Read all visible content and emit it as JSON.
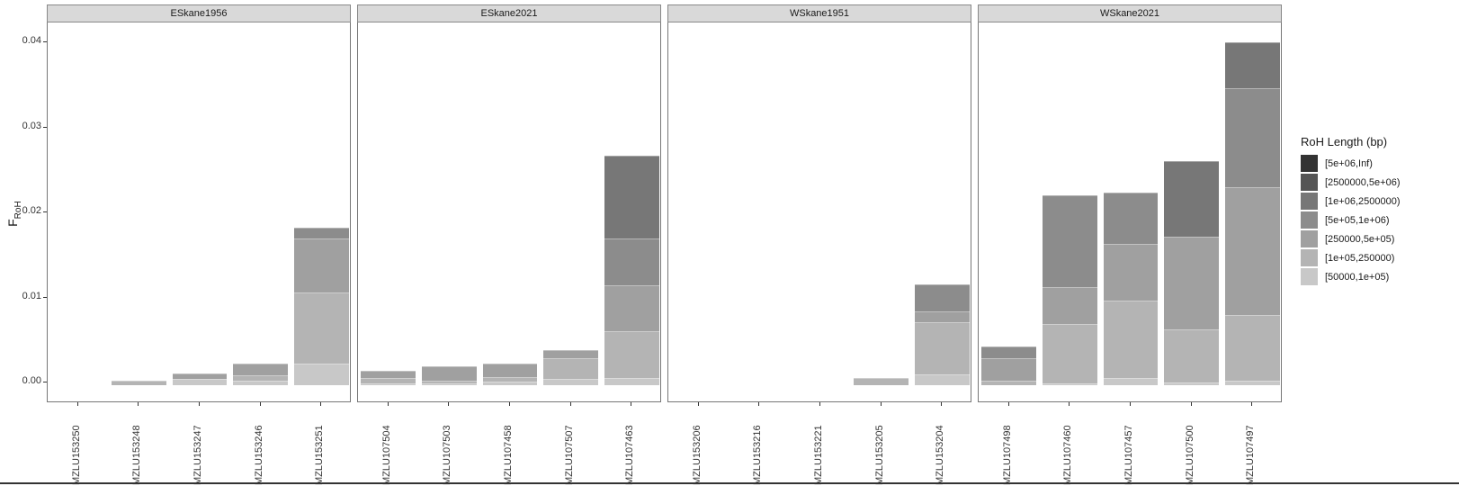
{
  "chart_data": {
    "type": "bar",
    "stacked": true,
    "ylabel": "F_RoH",
    "ylabel_main": "F",
    "ylabel_sub": "RoH",
    "ylim": [
      0,
      0.042
    ],
    "yticks": [
      "0.00",
      "0.01",
      "0.02",
      "0.03",
      "0.04"
    ],
    "legend": {
      "title": "RoH Length (bp)",
      "position": "right",
      "entries": [
        {
          "label": "[5e+06,Inf)",
          "color": "#333333"
        },
        {
          "label": "[2500000,5e+06)",
          "color": "#555555"
        },
        {
          "label": "[1e+06,2500000)",
          "color": "#777777"
        },
        {
          "label": "[5e+05,1e+06)",
          "color": "#8c8c8c"
        },
        {
          "label": "[250000,5e+05)",
          "color": "#a0a0a0"
        },
        {
          "label": "[1e+05,250000)",
          "color": "#b4b4b4"
        },
        {
          "label": "[50000,1e+05)",
          "color": "#c8c8c8"
        }
      ]
    },
    "stack_order_bottom_to_top": [
      "[50000,1e+05)",
      "[1e+05,250000)",
      "[250000,5e+05)",
      "[5e+05,1e+06)",
      "[1e+06,2500000)",
      "[2500000,5e+06)",
      "[5e+06,Inf)"
    ],
    "facets": [
      {
        "title": "ESkane1956",
        "categories": [
          "MZLU153250",
          "MZLU153248",
          "MZLU153247",
          "MZLU153246",
          "MZLU153251"
        ],
        "series": [
          {
            "name": "[50000,1e+05)",
            "values": [
              0,
              0,
              0.0007,
              0.0005,
              0.0025
            ]
          },
          {
            "name": "[1e+05,250000)",
            "values": [
              0,
              0.0005,
              0,
              0.0007,
              0.0084
            ]
          },
          {
            "name": "[250000,5e+05)",
            "values": [
              0,
              0,
              0.0007,
              0.0013,
              0.0064
            ]
          },
          {
            "name": "[5e+05,1e+06)",
            "values": [
              0,
              0,
              0,
              0,
              0.0012
            ]
          },
          {
            "name": "[1e+06,2500000)",
            "values": [
              0,
              0,
              0,
              0,
              0
            ]
          },
          {
            "name": "[2500000,5e+06)",
            "values": [
              0,
              0,
              0,
              0,
              0
            ]
          },
          {
            "name": "[5e+06,Inf)",
            "values": [
              0,
              0,
              0,
              0,
              0
            ]
          }
        ]
      },
      {
        "title": "ESkane2021",
        "categories": [
          "MZLU107504",
          "MZLU107503",
          "MZLU107458",
          "MZLU107507",
          "MZLU107463"
        ],
        "series": [
          {
            "name": "[50000,1e+05)",
            "values": [
              0.0002,
              0.0002,
              0.0004,
              0.0007,
              0.0009
            ]
          },
          {
            "name": "[1e+05,250000)",
            "values": [
              0.0006,
              0.0003,
              0.0006,
              0.0025,
              0.0054
            ]
          },
          {
            "name": "[250000,5e+05)",
            "values": [
              0.0009,
              0.0017,
              0.0015,
              0.0009,
              0.0055
            ]
          },
          {
            "name": "[5e+05,1e+06)",
            "values": [
              0,
              0,
              0,
              0,
              0.0055
            ]
          },
          {
            "name": "[1e+06,2500000)",
            "values": [
              0,
              0,
              0,
              0,
              0.0097
            ]
          },
          {
            "name": "[2500000,5e+06)",
            "values": [
              0,
              0,
              0,
              0,
              0
            ]
          },
          {
            "name": "[5e+06,Inf)",
            "values": [
              0,
              0,
              0,
              0,
              0
            ]
          }
        ]
      },
      {
        "title": "WSkane1951",
        "categories": [
          "MZLU153206",
          "MZLU153216",
          "MZLU153221",
          "MZLU153205",
          "MZLU153204"
        ],
        "series": [
          {
            "name": "[50000,1e+05)",
            "values": [
              0,
              0,
              0,
              0,
              0.0013
            ]
          },
          {
            "name": "[1e+05,250000)",
            "values": [
              0,
              0,
              0,
              0.0008,
              0.0061
            ]
          },
          {
            "name": "[250000,5e+05)",
            "values": [
              0,
              0,
              0,
              0,
              0.0013
            ]
          },
          {
            "name": "[5e+05,1e+06)",
            "values": [
              0,
              0,
              0,
              0,
              0.0032
            ]
          },
          {
            "name": "[1e+06,2500000)",
            "values": [
              0,
              0,
              0,
              0,
              0
            ]
          },
          {
            "name": "[2500000,5e+06)",
            "values": [
              0,
              0,
              0,
              0,
              0
            ]
          },
          {
            "name": "[5e+06,Inf)",
            "values": [
              0,
              0,
              0,
              0,
              0
            ]
          }
        ]
      },
      {
        "title": "WSkane2021",
        "categories": [
          "MZLU107498",
          "MZLU107460",
          "MZLU107457",
          "MZLU107500",
          "MZLU107497"
        ],
        "series": [
          {
            "name": "[50000,1e+05)",
            "values": [
              0,
              0.0002,
              0.0008,
              0.0003,
              0.0005
            ]
          },
          {
            "name": "[1e+05,250000)",
            "values": [
              0.0005,
              0.007,
              0.0092,
              0.0063,
              0.0078
            ]
          },
          {
            "name": "[250000,5e+05)",
            "values": [
              0.0027,
              0.0043,
              0.0066,
              0.0109,
              0.015
            ]
          },
          {
            "name": "[5e+05,1e+06)",
            "values": [
              0.0014,
              0.0108,
              0.006,
              0,
              0.0116
            ]
          },
          {
            "name": "[1e+06,2500000)",
            "values": [
              0,
              0,
              0,
              0.0088,
              0.0054
            ]
          },
          {
            "name": "[2500000,5e+06)",
            "values": [
              0,
              0,
              0,
              0,
              0
            ]
          },
          {
            "name": "[5e+06,Inf)",
            "values": [
              0,
              0,
              0,
              0,
              0
            ]
          }
        ]
      }
    ]
  }
}
